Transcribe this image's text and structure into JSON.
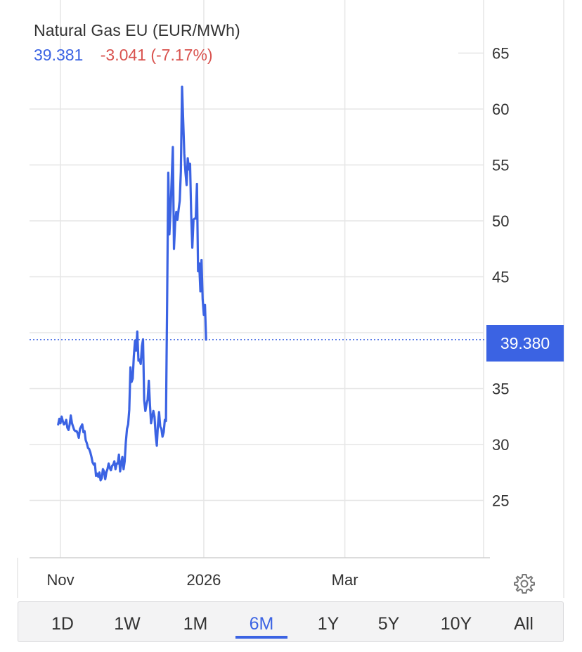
{
  "header": {
    "title": "Natural Gas EU (EUR/MWh)",
    "last_price": "39.381",
    "change": "-3.041 (-7.17%)"
  },
  "price_tag": "39.380",
  "colors": {
    "line": "#3b63e3",
    "negative": "#d9534f",
    "grid": "#e6e6e6",
    "axis_text": "#333333"
  },
  "icons": {
    "settings": "gear-icon"
  },
  "range_selector": {
    "options": [
      "1D",
      "1W",
      "1M",
      "6M",
      "1Y",
      "5Y",
      "10Y",
      "All"
    ],
    "selected": "6M"
  },
  "chart_data": {
    "type": "line",
    "title": "Natural Gas EU (EUR/MWh)",
    "ylim": [
      20,
      67
    ],
    "y_ticks": [
      25,
      30,
      35,
      40,
      45,
      50,
      55,
      60,
      65
    ],
    "y_tick_labels": [
      "25",
      "30",
      "35",
      "",
      "45",
      "50",
      "55",
      "60",
      "65"
    ],
    "x_labels": [
      "Nov",
      "2026",
      "Mar"
    ],
    "x_label_positions": [
      2,
      127,
      250
    ],
    "x_range": [
      -25,
      371
    ],
    "grid": true,
    "reference_line": 39.38,
    "series": [
      {
        "values": [
          31.8,
          32.3,
          31.9,
          32.5,
          32.1,
          31.8,
          31.9,
          32.2,
          31.5,
          31.3,
          31.8,
          32.6,
          31.9,
          31.6,
          31.3,
          31.2,
          31.2,
          31.0,
          30.6,
          31.4,
          31.6,
          31.8,
          31.1,
          31.2,
          30.4,
          30.1,
          29.7,
          29.6,
          29.3,
          28.9,
          28.4,
          28.2,
          28.3,
          27.2,
          27.4,
          27.1,
          27.5,
          26.8,
          27.0,
          27.8,
          27.6,
          26.9,
          27.5,
          27.8,
          28.3,
          27.9,
          27.7,
          28.1,
          28.2,
          28.5,
          27.8,
          28.3,
          28.3,
          29.1,
          27.6,
          28.3,
          28.9,
          27.8,
          28.5,
          30.2,
          31.4,
          31.8,
          33.1,
          36.9,
          35.6,
          35.9,
          37.9,
          39.3,
          38.4,
          40.1,
          37.5,
          37.6,
          37.2,
          38.8,
          39.4,
          34.0,
          33.0,
          33.6,
          34.0,
          35.7,
          33.6,
          31.9,
          32.5,
          33.0,
          32.5,
          30.9,
          29.9,
          31.8,
          32.9,
          31.6,
          31.4,
          30.7,
          31.1,
          32.2,
          32.1,
          43.0,
          54.3,
          48.8,
          51.0,
          53.8,
          56.6,
          47.5,
          49.8,
          50.8,
          50.1,
          51.0,
          51.8,
          54.4,
          62.0,
          59.0,
          56.0,
          54.3,
          53.2,
          55.6,
          54.6,
          55.1,
          50.6,
          47.6,
          50.1,
          50.2,
          50.2,
          53.3,
          45.5,
          46.2,
          43.7,
          46.5,
          43.0,
          41.6,
          42.5,
          39.38
        ]
      }
    ]
  }
}
